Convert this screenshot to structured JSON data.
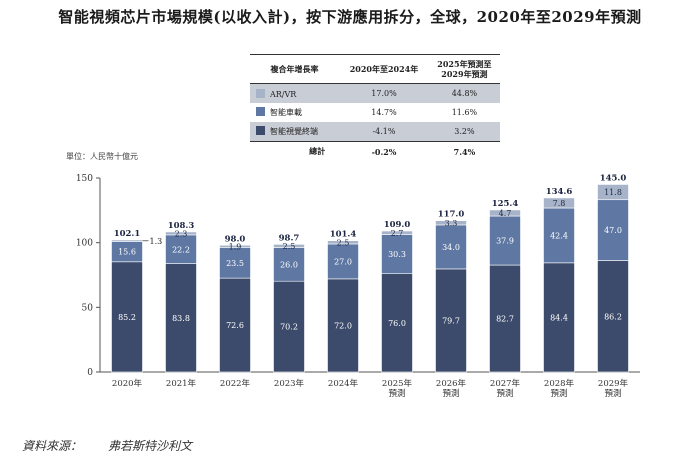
{
  "title": "智能視頻芯片市場規模(以收入計)，按下游應用拆分，全球，2020年至2029年預測",
  "cagr_table": {
    "headers": [
      "複合年增長率",
      "2020年至2024年",
      "2025年預測至\n2029年預測"
    ],
    "rows": [
      {
        "label": "AR/VR",
        "v1": "17.0%",
        "v2": "44.8%"
      },
      {
        "label": "智能車載",
        "v1": "14.7%",
        "v2": "11.6%"
      },
      {
        "label": "智能視覺終端",
        "v1": "-4.1%",
        "v2": "3.2%"
      }
    ],
    "total": {
      "label": "總計",
      "v1": "-0.2%",
      "v2": "7.4%"
    }
  },
  "unit_label": "單位：人民幣十億元",
  "source": {
    "label": "資料來源：",
    "value": "弗若斯特沙利文"
  },
  "colors": {
    "terminal": "#3c4a6b",
    "vehicle": "#5e77a3",
    "arvr": "#a6b3c9",
    "shaded_row": "#c9ced6"
  },
  "chart_data": {
    "type": "bar",
    "stacked": true,
    "categories": [
      "2020年",
      "2021年",
      "2022年",
      "2023年",
      "2024年",
      "2025年\n預測",
      "2026年\n預測",
      "2027年\n預測",
      "2028年\n預測",
      "2029年\n預測"
    ],
    "series": [
      {
        "name": "智能視覺終端",
        "values": [
          85.2,
          83.8,
          72.6,
          70.2,
          72.0,
          76.0,
          79.7,
          82.7,
          84.4,
          86.2
        ]
      },
      {
        "name": "智能車載",
        "values": [
          15.6,
          22.2,
          23.5,
          26.0,
          27.0,
          30.3,
          34.0,
          37.9,
          42.4,
          47.0
        ]
      },
      {
        "name": "AR/VR",
        "values": [
          1.3,
          2.3,
          1.9,
          2.5,
          2.5,
          2.7,
          3.3,
          4.7,
          7.8,
          11.8
        ]
      }
    ],
    "totals": [
      102.1,
      108.3,
      98.0,
      98.7,
      101.4,
      109.0,
      117.0,
      125.4,
      134.6,
      145.0
    ],
    "total_labels": [
      "102.1",
      "108.3",
      "98.0",
      "98.7",
      "101.4",
      "109.0",
      "117.0",
      "125.4",
      "134.6",
      "145.0"
    ],
    "value_labels": [
      [
        "85.2",
        "83.8",
        "72.6",
        "70.2",
        "72.0",
        "76.0",
        "79.7",
        "82.7",
        "84.4",
        "86.2"
      ],
      [
        "15.6",
        "22.2",
        "23.5",
        "26.0",
        "27.0",
        "30.3",
        "34.0",
        "37.9",
        "42.4",
        "47.0"
      ],
      [
        "1.3",
        "2.3",
        "1.9",
        "2.5",
        "2.5",
        "2.7",
        "3.3",
        "4.7",
        "7.8",
        "11.8"
      ]
    ],
    "ylim": [
      0,
      150
    ],
    "yticks": [
      0,
      50,
      100,
      150
    ],
    "ytick_labels": [
      "0",
      "50",
      "100",
      "150"
    ],
    "ylabel": "單位：人民幣十億元",
    "xlabel": ""
  }
}
